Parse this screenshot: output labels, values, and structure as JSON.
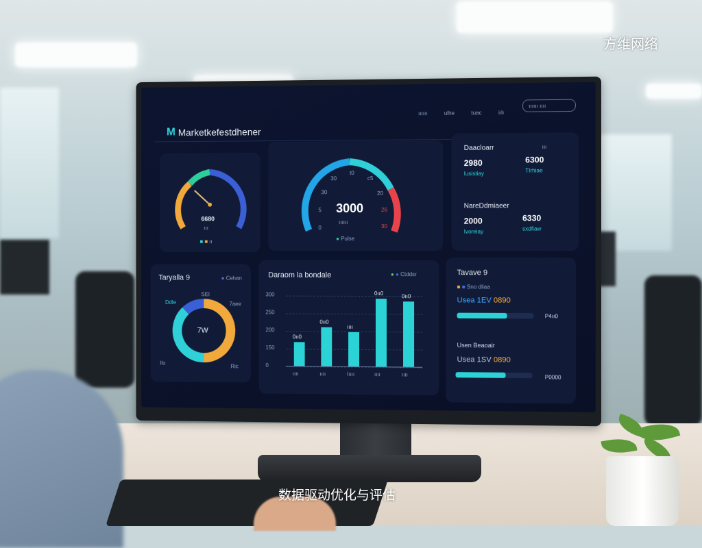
{
  "watermark": "方维网络",
  "caption": "数据驱动优化与评估",
  "dashboard": {
    "brand_letter": "M",
    "brand": "Marketkefestdhener",
    "nav": [
      "ıııııı",
      "ulhe",
      "tuac",
      "iılı"
    ],
    "nav_button": "ıııııı ıııı",
    "gauge_small": {
      "value": "6680",
      "label": "ııı",
      "legend": "ıı",
      "level": 0.3
    },
    "gauge_big": {
      "value": "3000",
      "sub": "ıııııı",
      "ticks": [
        "0",
        "5",
        "30",
        "30",
        "t0",
        "c5",
        "20",
        "26",
        "30"
      ],
      "legend": "Pulse"
    },
    "stats": {
      "title1": "Daacloarr",
      "corner": "ııı",
      "a": {
        "value": "2980",
        "label": "Iusistiay"
      },
      "b": {
        "value": "6300",
        "label": "TIrhiae"
      },
      "title2": "NareDdmiaeer",
      "c": {
        "value": "2000",
        "label": "Ivoreiay"
      },
      "d": {
        "value": "6330",
        "label": "sxdfiaw"
      }
    },
    "donut": {
      "title": "Taryalla 9",
      "legend": "Cehan",
      "center": "7W",
      "labels": [
        "Ddle",
        "SEI",
        "7aee",
        "Ilo",
        "Ric"
      ],
      "shares": [
        0.5,
        0.38,
        0.12
      ],
      "colors": [
        "#f2a93b",
        "#2fd0d8",
        "#3b5fd6"
      ]
    },
    "bars": {
      "title": "Daraom la bondale",
      "legend": "Ctddsr",
      "yticks": [
        "0",
        "150",
        "200",
        "250",
        "300"
      ],
      "values": [
        100,
        165,
        145,
        285,
        275
      ],
      "value_labels": [
        "0ıı0",
        "0ıı0",
        "ıııı",
        "0ıı0",
        "0ıı0"
      ],
      "categories": [
        "ıııı",
        "ıııı",
        "Iıııı",
        "ıııı",
        "ıııı"
      ]
    },
    "progress": {
      "title": "Tavave 9",
      "legend": "Sno dliaa",
      "row1": {
        "label": "Usea 1EV",
        "value": "0890",
        "right": "P4ıı0",
        "fill": 0.65
      },
      "sub": "Usen Beaoair",
      "row2": {
        "label": "Usea 1SV",
        "value": "0890",
        "right": "P0000",
        "fill": 0.65
      }
    },
    "accent": "#2fd0d8",
    "danger": "#e8434b"
  }
}
